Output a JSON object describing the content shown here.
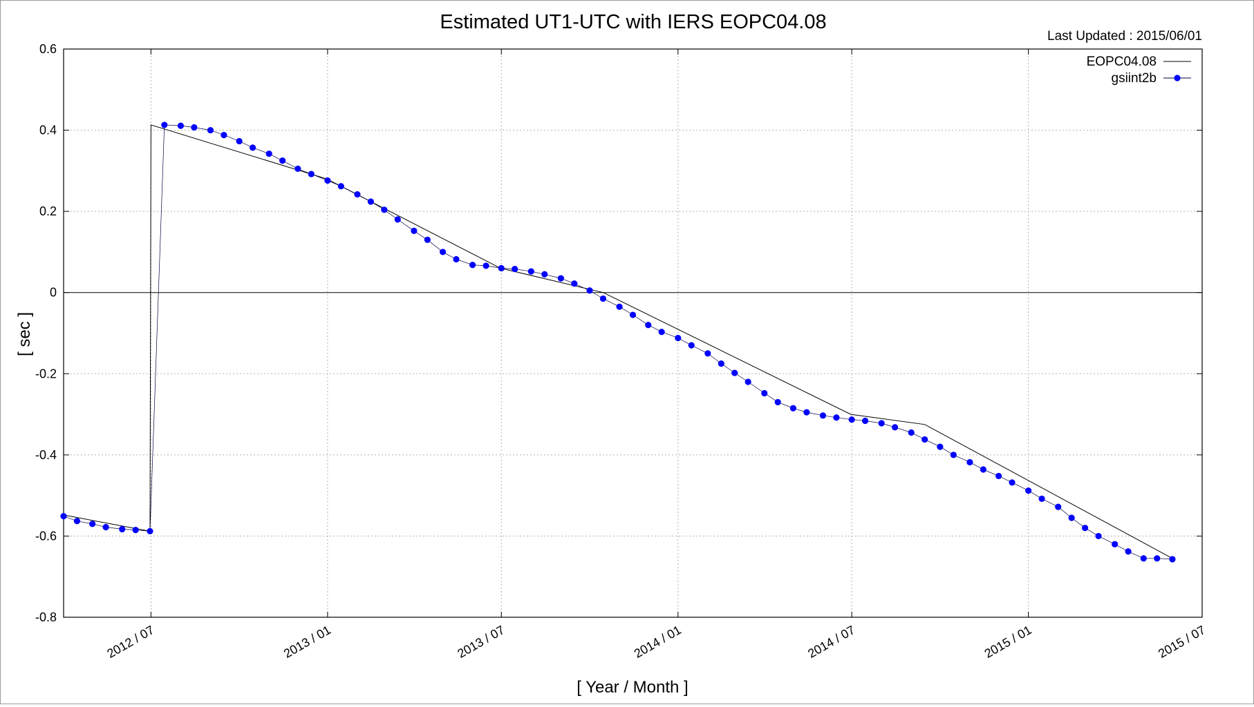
{
  "chart_data": {
    "type": "line",
    "title": "Estimated UT1-UTC with IERS EOPC04.08",
    "subtitle": "Last Updated : 2015/06/01",
    "xlabel": "[ Year / Month ]",
    "ylabel": "[ sec ]",
    "ylim": [
      -0.8,
      0.6
    ],
    "y_ticks": [
      -0.8,
      -0.6,
      -0.4,
      -0.2,
      0,
      0.2,
      0.4,
      0.6
    ],
    "y_tick_labels": [
      "-0.8",
      "-0.6",
      "-0.4",
      "-0.2",
      "0",
      "0.2",
      "0.4",
      "0.6"
    ],
    "xlim": [
      "2012-04-01",
      "2015-07-01"
    ],
    "x_ticks": [
      "2012-07-01",
      "2013-01-01",
      "2013-07-01",
      "2014-01-01",
      "2014-07-01",
      "2015-01-01",
      "2015-07-01"
    ],
    "x_tick_labels": [
      "2012 / 07",
      "2013 / 01",
      "2013 / 07",
      "2014 / 01",
      "2014 / 07",
      "2015 / 01",
      "2015 / 07"
    ],
    "grid": true,
    "legend_position": "top-right",
    "series": [
      {
        "name": "EOPC04.08",
        "style": "line",
        "color": "#000000",
        "x": [
          "2012-04-01",
          "2012-06-30",
          "2012-07-01",
          "2012-12-31",
          "2013-06-30",
          "2013-10-15",
          "2014-06-30",
          "2014-09-15",
          "2015-05-31"
        ],
        "y": [
          -0.548,
          -0.588,
          0.413,
          0.28,
          0.06,
          0.0,
          -0.3,
          -0.325,
          -0.655
        ]
      },
      {
        "name": "gsiint2b",
        "style": "line+markers",
        "color": "#0000ff",
        "x": [
          "2012-04-01",
          "2012-04-15",
          "2012-05-01",
          "2012-05-15",
          "2012-06-01",
          "2012-06-15",
          "2012-06-30",
          "2012-07-15",
          "2012-08-01",
          "2012-08-15",
          "2012-09-01",
          "2012-09-15",
          "2012-10-01",
          "2012-10-15",
          "2012-11-01",
          "2012-11-15",
          "2012-12-01",
          "2012-12-15",
          "2013-01-01",
          "2013-01-15",
          "2013-02-01",
          "2013-02-15",
          "2013-03-01",
          "2013-03-15",
          "2013-04-01",
          "2013-04-15",
          "2013-05-01",
          "2013-05-15",
          "2013-06-01",
          "2013-06-15",
          "2013-07-01",
          "2013-07-15",
          "2013-08-01",
          "2013-08-15",
          "2013-09-01",
          "2013-09-15",
          "2013-10-01",
          "2013-10-15",
          "2013-11-01",
          "2013-11-15",
          "2013-12-01",
          "2013-12-15",
          "2014-01-01",
          "2014-01-15",
          "2014-02-01",
          "2014-02-15",
          "2014-03-01",
          "2014-03-15",
          "2014-04-01",
          "2014-04-15",
          "2014-05-01",
          "2014-05-15",
          "2014-06-01",
          "2014-06-15",
          "2014-07-01",
          "2014-07-15",
          "2014-08-01",
          "2014-08-15",
          "2014-09-01",
          "2014-09-15",
          "2014-10-01",
          "2014-10-15",
          "2014-11-01",
          "2014-11-15",
          "2014-12-01",
          "2014-12-15",
          "2015-01-01",
          "2015-01-15",
          "2015-02-01",
          "2015-02-15",
          "2015-03-01",
          "2015-03-15",
          "2015-04-01",
          "2015-04-15",
          "2015-05-01",
          "2015-05-15",
          "2015-05-31"
        ],
        "y": [
          -0.551,
          -0.563,
          -0.57,
          -0.578,
          -0.583,
          -0.585,
          -0.588,
          0.413,
          0.411,
          0.407,
          0.4,
          0.388,
          0.373,
          0.357,
          0.342,
          0.325,
          0.305,
          0.292,
          0.276,
          0.262,
          0.242,
          0.224,
          0.204,
          0.18,
          0.152,
          0.13,
          0.1,
          0.082,
          0.068,
          0.066,
          0.06,
          0.058,
          0.052,
          0.045,
          0.035,
          0.022,
          0.005,
          -0.015,
          -0.035,
          -0.055,
          -0.08,
          -0.097,
          -0.112,
          -0.13,
          -0.15,
          -0.175,
          -0.198,
          -0.22,
          -0.248,
          -0.27,
          -0.285,
          -0.295,
          -0.303,
          -0.308,
          -0.313,
          -0.316,
          -0.322,
          -0.332,
          -0.345,
          -0.362,
          -0.38,
          -0.4,
          -0.418,
          -0.436,
          -0.452,
          -0.468,
          -0.488,
          -0.508,
          -0.528,
          -0.555,
          -0.58,
          -0.6,
          -0.62,
          -0.638,
          -0.655,
          -0.655,
          -0.657
        ]
      }
    ]
  }
}
